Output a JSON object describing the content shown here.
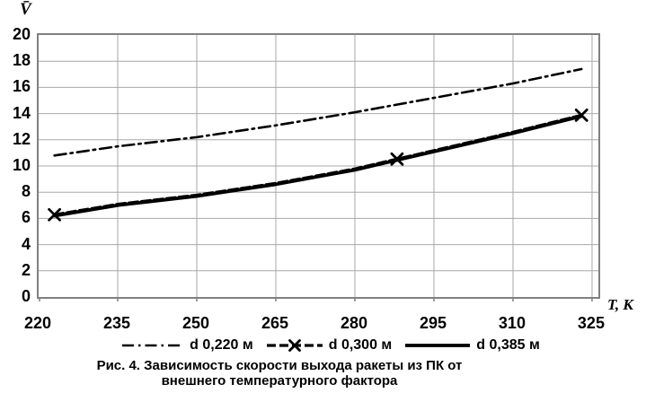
{
  "colors": {
    "grid": "#a8a8a8",
    "border": "#808080",
    "line": "#000000"
  },
  "axes": {
    "y_title": "V̄",
    "x_title": "T, К"
  },
  "chart_data": {
    "type": "line",
    "title": "Рис. 4. Зависимость скорости выхода ракеты из ПК от внешнего температурного фактора",
    "xlabel": "T, К",
    "ylabel": "V̄",
    "xlim": [
      220,
      326.2
    ],
    "ylim": [
      0,
      20
    ],
    "x_ticks": [
      220,
      235,
      250,
      265,
      280,
      295,
      310,
      325
    ],
    "y_ticks": [
      0,
      2,
      4,
      6,
      8,
      10,
      12,
      14,
      16,
      18,
      20
    ],
    "grid": true,
    "legend_position": "bottom",
    "series": [
      {
        "name": "d 0,220 м",
        "style": "dashdot",
        "x": [
          223,
          235,
          250,
          265,
          280,
          295,
          310,
          323
        ],
        "y": [
          10.8,
          11.5,
          12.2,
          13.1,
          14.1,
          15.2,
          16.3,
          17.4
        ]
      },
      {
        "name": "d 0,300 м",
        "style": "dashed",
        "x": [
          223,
          235,
          250,
          265,
          280,
          288,
          295,
          310,
          323
        ],
        "y": [
          6.28,
          7.08,
          7.78,
          8.68,
          9.78,
          10.53,
          11.18,
          12.58,
          13.88
        ],
        "marker": "x",
        "marker_points": [
          [
            223,
            6.28
          ],
          [
            288,
            10.53
          ],
          [
            323,
            13.88
          ]
        ]
      },
      {
        "name": "d 0,385 м",
        "style": "solid",
        "x": [
          223,
          235,
          250,
          265,
          280,
          288,
          295,
          310,
          323
        ],
        "y": [
          6.2,
          7.0,
          7.7,
          8.6,
          9.7,
          10.45,
          11.1,
          12.5,
          13.8
        ]
      }
    ]
  },
  "caption": {
    "line1": "Рис. 4. Зависимость скорости выхода ракеты из ПК от",
    "line2": "внешнего температурного фактора"
  }
}
